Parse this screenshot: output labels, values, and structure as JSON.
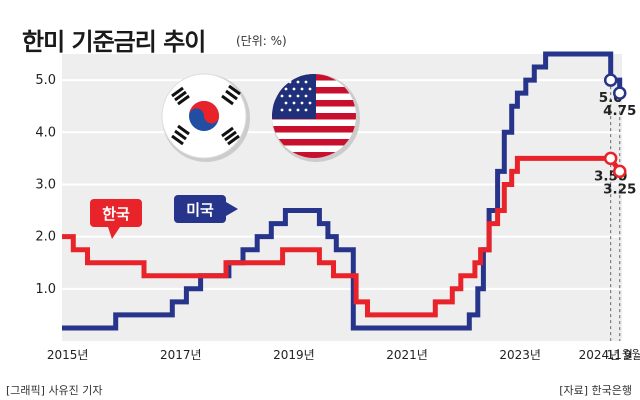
{
  "header": {
    "title": "한미 기준금리 추이",
    "unit": "(단위: %)"
  },
  "footer": {
    "credit": "[그래픽] 사유진 기자",
    "source": "[자료] 한국은행"
  },
  "colors": {
    "korea": "#e8232a",
    "usa": "#27348b",
    "background": "#eeeeee",
    "grid": "#ffffff"
  },
  "chart_data": {
    "type": "line",
    "title": "한미 기준금리 추이",
    "xlabel": "",
    "ylabel": "",
    "ylim": [
      0,
      5.5
    ],
    "xlim": [
      2015.0,
      2024.9
    ],
    "grid": true,
    "y_ticks": [
      {
        "value": 1.0,
        "label": "1.0"
      },
      {
        "value": 2.0,
        "label": "2.0"
      },
      {
        "value": 3.0,
        "label": "3.0"
      },
      {
        "value": 4.0,
        "label": "4.0"
      },
      {
        "value": 5.0,
        "label": "5.0"
      }
    ],
    "x_ticks": [
      {
        "value": 2015.1,
        "label": "2015년"
      },
      {
        "value": 2017.1,
        "label": "2017년"
      },
      {
        "value": 2019.1,
        "label": "2019년"
      },
      {
        "value": 2021.1,
        "label": "2021년"
      },
      {
        "value": 2023.1,
        "label": "2023년"
      },
      {
        "value": 2024.7,
        "label": "2024년 9월"
      },
      {
        "value": 2024.86,
        "label": "11월"
      }
    ],
    "series": [
      {
        "name": "미국",
        "color": "#27348b",
        "points": [
          [
            2015.0,
            0.25
          ],
          [
            2015.95,
            0.25
          ],
          [
            2015.95,
            0.5
          ],
          [
            2016.95,
            0.5
          ],
          [
            2016.95,
            0.75
          ],
          [
            2017.2,
            0.75
          ],
          [
            2017.2,
            1.0
          ],
          [
            2017.45,
            1.0
          ],
          [
            2017.45,
            1.25
          ],
          [
            2017.95,
            1.25
          ],
          [
            2017.95,
            1.5
          ],
          [
            2018.2,
            1.5
          ],
          [
            2018.2,
            1.75
          ],
          [
            2018.45,
            1.75
          ],
          [
            2018.45,
            2.0
          ],
          [
            2018.7,
            2.0
          ],
          [
            2018.7,
            2.25
          ],
          [
            2018.95,
            2.25
          ],
          [
            2018.95,
            2.5
          ],
          [
            2019.55,
            2.5
          ],
          [
            2019.55,
            2.25
          ],
          [
            2019.7,
            2.25
          ],
          [
            2019.7,
            2.0
          ],
          [
            2019.85,
            2.0
          ],
          [
            2019.85,
            1.75
          ],
          [
            2020.15,
            1.75
          ],
          [
            2020.15,
            0.25
          ],
          [
            2022.2,
            0.25
          ],
          [
            2022.2,
            0.5
          ],
          [
            2022.35,
            0.5
          ],
          [
            2022.35,
            1.0
          ],
          [
            2022.45,
            1.0
          ],
          [
            2022.45,
            1.75
          ],
          [
            2022.55,
            1.75
          ],
          [
            2022.55,
            2.5
          ],
          [
            2022.7,
            2.5
          ],
          [
            2022.7,
            3.25
          ],
          [
            2022.82,
            3.25
          ],
          [
            2022.82,
            4.0
          ],
          [
            2022.95,
            4.0
          ],
          [
            2022.95,
            4.5
          ],
          [
            2023.05,
            4.5
          ],
          [
            2023.05,
            4.75
          ],
          [
            2023.2,
            4.75
          ],
          [
            2023.2,
            5.0
          ],
          [
            2023.35,
            5.0
          ],
          [
            2023.35,
            5.25
          ],
          [
            2023.55,
            5.25
          ],
          [
            2023.55,
            5.5
          ],
          [
            2024.7,
            5.5
          ],
          [
            2024.7,
            5.0
          ],
          [
            2024.86,
            5.0
          ],
          [
            2024.86,
            4.75
          ]
        ]
      },
      {
        "name": "한국",
        "color": "#e8232a",
        "points": [
          [
            2015.0,
            2.0
          ],
          [
            2015.2,
            2.0
          ],
          [
            2015.2,
            1.75
          ],
          [
            2015.45,
            1.75
          ],
          [
            2015.45,
            1.5
          ],
          [
            2016.45,
            1.5
          ],
          [
            2016.45,
            1.25
          ],
          [
            2017.9,
            1.25
          ],
          [
            2017.9,
            1.5
          ],
          [
            2018.9,
            1.5
          ],
          [
            2018.9,
            1.75
          ],
          [
            2019.55,
            1.75
          ],
          [
            2019.55,
            1.5
          ],
          [
            2019.8,
            1.5
          ],
          [
            2019.8,
            1.25
          ],
          [
            2020.2,
            1.25
          ],
          [
            2020.2,
            0.75
          ],
          [
            2020.4,
            0.75
          ],
          [
            2020.4,
            0.5
          ],
          [
            2021.6,
            0.5
          ],
          [
            2021.6,
            0.75
          ],
          [
            2021.9,
            0.75
          ],
          [
            2021.9,
            1.0
          ],
          [
            2022.05,
            1.0
          ],
          [
            2022.05,
            1.25
          ],
          [
            2022.3,
            1.25
          ],
          [
            2022.3,
            1.5
          ],
          [
            2022.4,
            1.5
          ],
          [
            2022.4,
            1.75
          ],
          [
            2022.55,
            1.75
          ],
          [
            2022.55,
            2.25
          ],
          [
            2022.7,
            2.25
          ],
          [
            2022.7,
            2.5
          ],
          [
            2022.82,
            2.5
          ],
          [
            2022.82,
            3.0
          ],
          [
            2022.95,
            3.0
          ],
          [
            2022.95,
            3.25
          ],
          [
            2023.05,
            3.25
          ],
          [
            2023.05,
            3.5
          ],
          [
            2024.7,
            3.5
          ],
          [
            2024.86,
            3.25
          ]
        ]
      }
    ],
    "annotations": [
      {
        "series": "미국",
        "x": 2024.7,
        "y": 5.0,
        "label": "5.0"
      },
      {
        "series": "미국",
        "x": 2024.86,
        "y": 4.75,
        "label": "4.75"
      },
      {
        "series": "한국",
        "x": 2024.7,
        "y": 3.5,
        "label": "3.50"
      },
      {
        "series": "한국",
        "x": 2024.86,
        "y": 3.25,
        "label": "3.25"
      }
    ],
    "legend_labels": [
      {
        "series": "한국",
        "label": "한국"
      },
      {
        "series": "미국",
        "label": "미국"
      }
    ]
  }
}
